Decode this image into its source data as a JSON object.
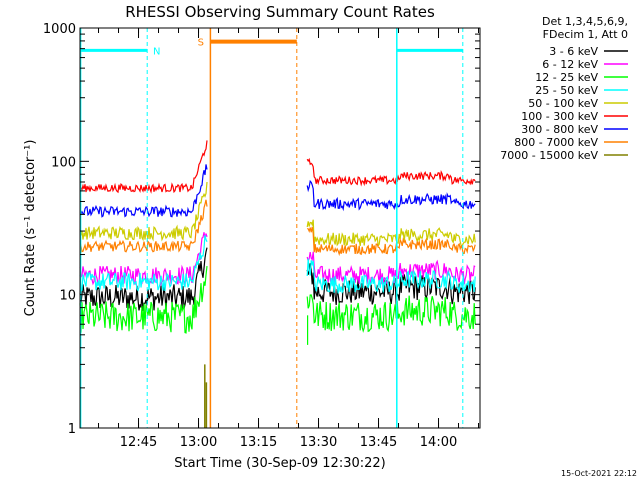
{
  "chart_data": {
    "type": "line",
    "title": "RHESSI Observing Summary Count Rates",
    "xlabel": "Start Time (30-Sep-09 12:30:22)",
    "ylabel": "Count Rate (s⁻¹ detector⁻¹)",
    "yscale": "log",
    "ylim": [
      1,
      1000
    ],
    "xlim_minutes": [
      0,
      100
    ],
    "y_ticks": [
      {
        "value": 1,
        "label": "1"
      },
      {
        "value": 10,
        "label": "10"
      },
      {
        "value": 100,
        "label": "100"
      },
      {
        "value": 1000,
        "label": "1000"
      }
    ],
    "x_ticks": [
      {
        "minutes": 14.63,
        "label": "12:45"
      },
      {
        "minutes": 29.63,
        "label": "13:00"
      },
      {
        "minutes": 44.63,
        "label": "13:15"
      },
      {
        "minutes": 59.63,
        "label": "13:30"
      },
      {
        "minutes": 74.63,
        "label": "13:45"
      },
      {
        "minutes": 89.63,
        "label": "14:00"
      }
    ],
    "legend_header": [
      "Det 1,3,4,5,6,9,",
      "FDecim 1, Att 0"
    ],
    "series": [
      {
        "name": "3 - 6 keV",
        "color": "#000000",
        "level_before": 9.5,
        "level_after": 10.5
      },
      {
        "name": "6 - 12 keV",
        "color": "#ff00ff",
        "level_before": 14,
        "level_after": 14
      },
      {
        "name": "12 - 25 keV",
        "color": "#00ff00",
        "level_before": 6.8,
        "level_after": 7
      },
      {
        "name": "25 - 50 keV",
        "color": "#00ffff",
        "level_before": 12.5,
        "level_after": 12
      },
      {
        "name": "50 - 100 keV",
        "color": "#cccc00",
        "level_before": 29,
        "level_after": 26
      },
      {
        "name": "100 - 300 keV",
        "color": "#ff0000",
        "level_before": 63,
        "level_after": 72
      },
      {
        "name": "300 - 800 keV",
        "color": "#0000ff",
        "level_before": 42,
        "level_after": 48
      },
      {
        "name": "800 - 7000 keV",
        "color": "#ff8000",
        "level_before": 23,
        "level_after": 22
      },
      {
        "name": "7000 - 15000 keV",
        "color": "#808000",
        "level_before": 1,
        "level_after": 1
      }
    ],
    "flags": [
      {
        "label": "N",
        "color": "#00ffff"
      },
      {
        "label": "S",
        "color": "#ff8000"
      }
    ],
    "timestamp": "15-Oct-2021 22:12"
  }
}
